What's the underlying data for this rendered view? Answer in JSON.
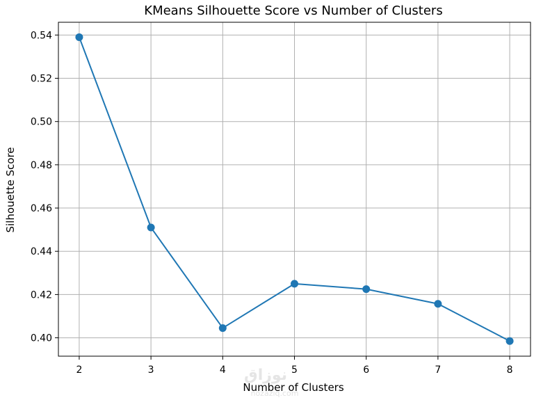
{
  "chart_data": {
    "type": "line",
    "title": "KMeans Silhouette Score vs Number of Clusters",
    "xlabel": "Number of Clusters",
    "ylabel": "Silhouette Score",
    "x": [
      2,
      3,
      4,
      5,
      6,
      7,
      8
    ],
    "series": [
      {
        "values": [
          0.539,
          0.451,
          0.4045,
          0.425,
          0.4225,
          0.4157,
          0.3985
        ],
        "color": "#1f77b4",
        "marker": "circle"
      }
    ],
    "xticks": [
      2,
      3,
      4,
      5,
      6,
      7,
      8
    ],
    "yticks": [
      0.4,
      0.42,
      0.44,
      0.46,
      0.48,
      0.5,
      0.52,
      0.54
    ],
    "ytick_labels": [
      "0.40",
      "0.42",
      "0.44",
      "0.46",
      "0.48",
      "0.50",
      "0.52",
      "0.54"
    ],
    "xlim": [
      1.71,
      8.29
    ],
    "ylim": [
      0.3915,
      0.5459
    ],
    "grid": true
  },
  "watermark": {
    "logo_text": "نوزاق",
    "site": "nozaziq.com"
  }
}
